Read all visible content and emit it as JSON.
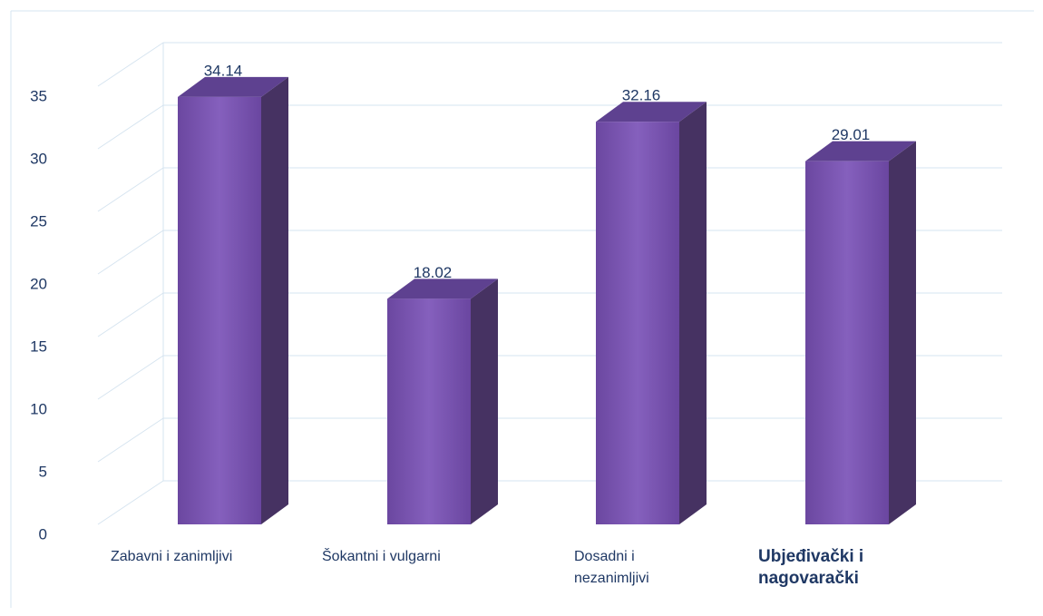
{
  "chart_data": {
    "type": "bar3d",
    "categories": [
      "Zabavni i zanimljivi",
      "Šokantni i vulgarni",
      "Dosadni i nezanimljivi",
      "Ubjeđivački i nagovarački"
    ],
    "values": [
      34.14,
      18.02,
      32.16,
      29.01
    ],
    "color": "#7b55b2",
    "ylim": [
      0,
      35
    ],
    "yticks": [
      0,
      5,
      10,
      15,
      20,
      25,
      30,
      35
    ],
    "grid": true
  }
}
